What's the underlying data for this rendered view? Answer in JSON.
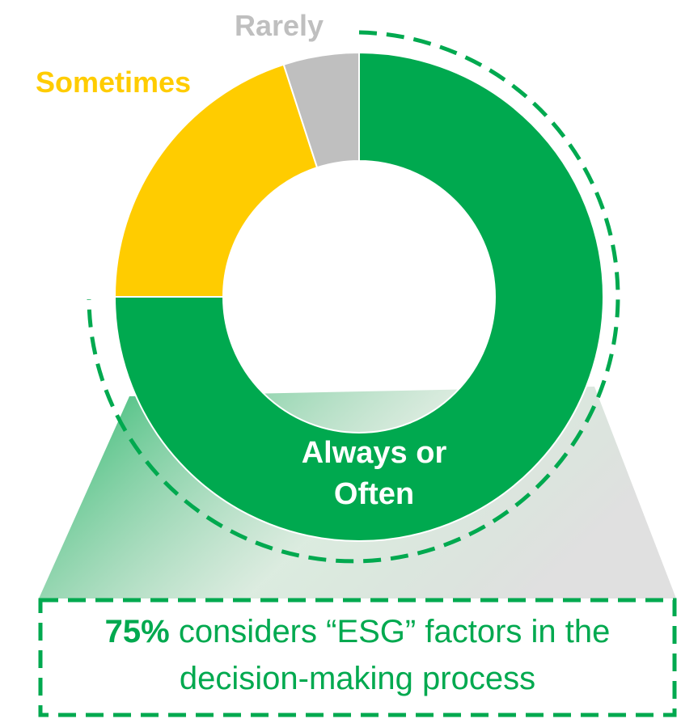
{
  "chart_data": {
    "type": "donut",
    "categories": [
      "Always or Often",
      "Sometimes",
      "Rarely"
    ],
    "values": [
      75,
      20,
      5
    ],
    "colors": [
      "#00a94f",
      "#ffcc00",
      "#bfbfbf"
    ],
    "annotation": {
      "highlight": "75%",
      "text": "considers “ESG” factors in the decision-making process"
    }
  }
}
